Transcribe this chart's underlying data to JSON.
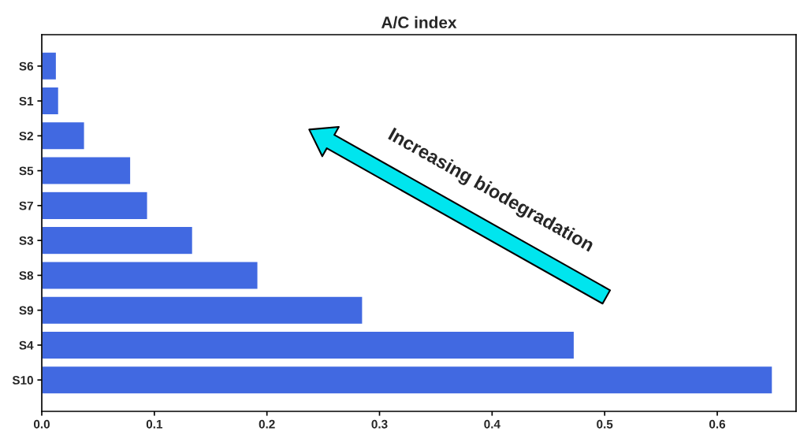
{
  "chart_data": {
    "type": "bar",
    "orientation": "horizontal",
    "title": "A/C index",
    "categories": [
      "S6",
      "S1",
      "S2",
      "S5",
      "S7",
      "S3",
      "S8",
      "S9",
      "S4",
      "S10"
    ],
    "values": [
      0.013,
      0.015,
      0.038,
      0.079,
      0.094,
      0.134,
      0.192,
      0.285,
      0.473,
      0.649
    ],
    "color": "#4169e1",
    "xlim": [
      0,
      0.67
    ],
    "xticks": [
      {
        "value": 0,
        "label": "0.0"
      },
      0.1,
      0.2,
      0.3,
      0.4,
      0.5,
      0.6
    ],
    "annotations": [
      "Increasing biodegradation"
    ],
    "grid": false
  }
}
